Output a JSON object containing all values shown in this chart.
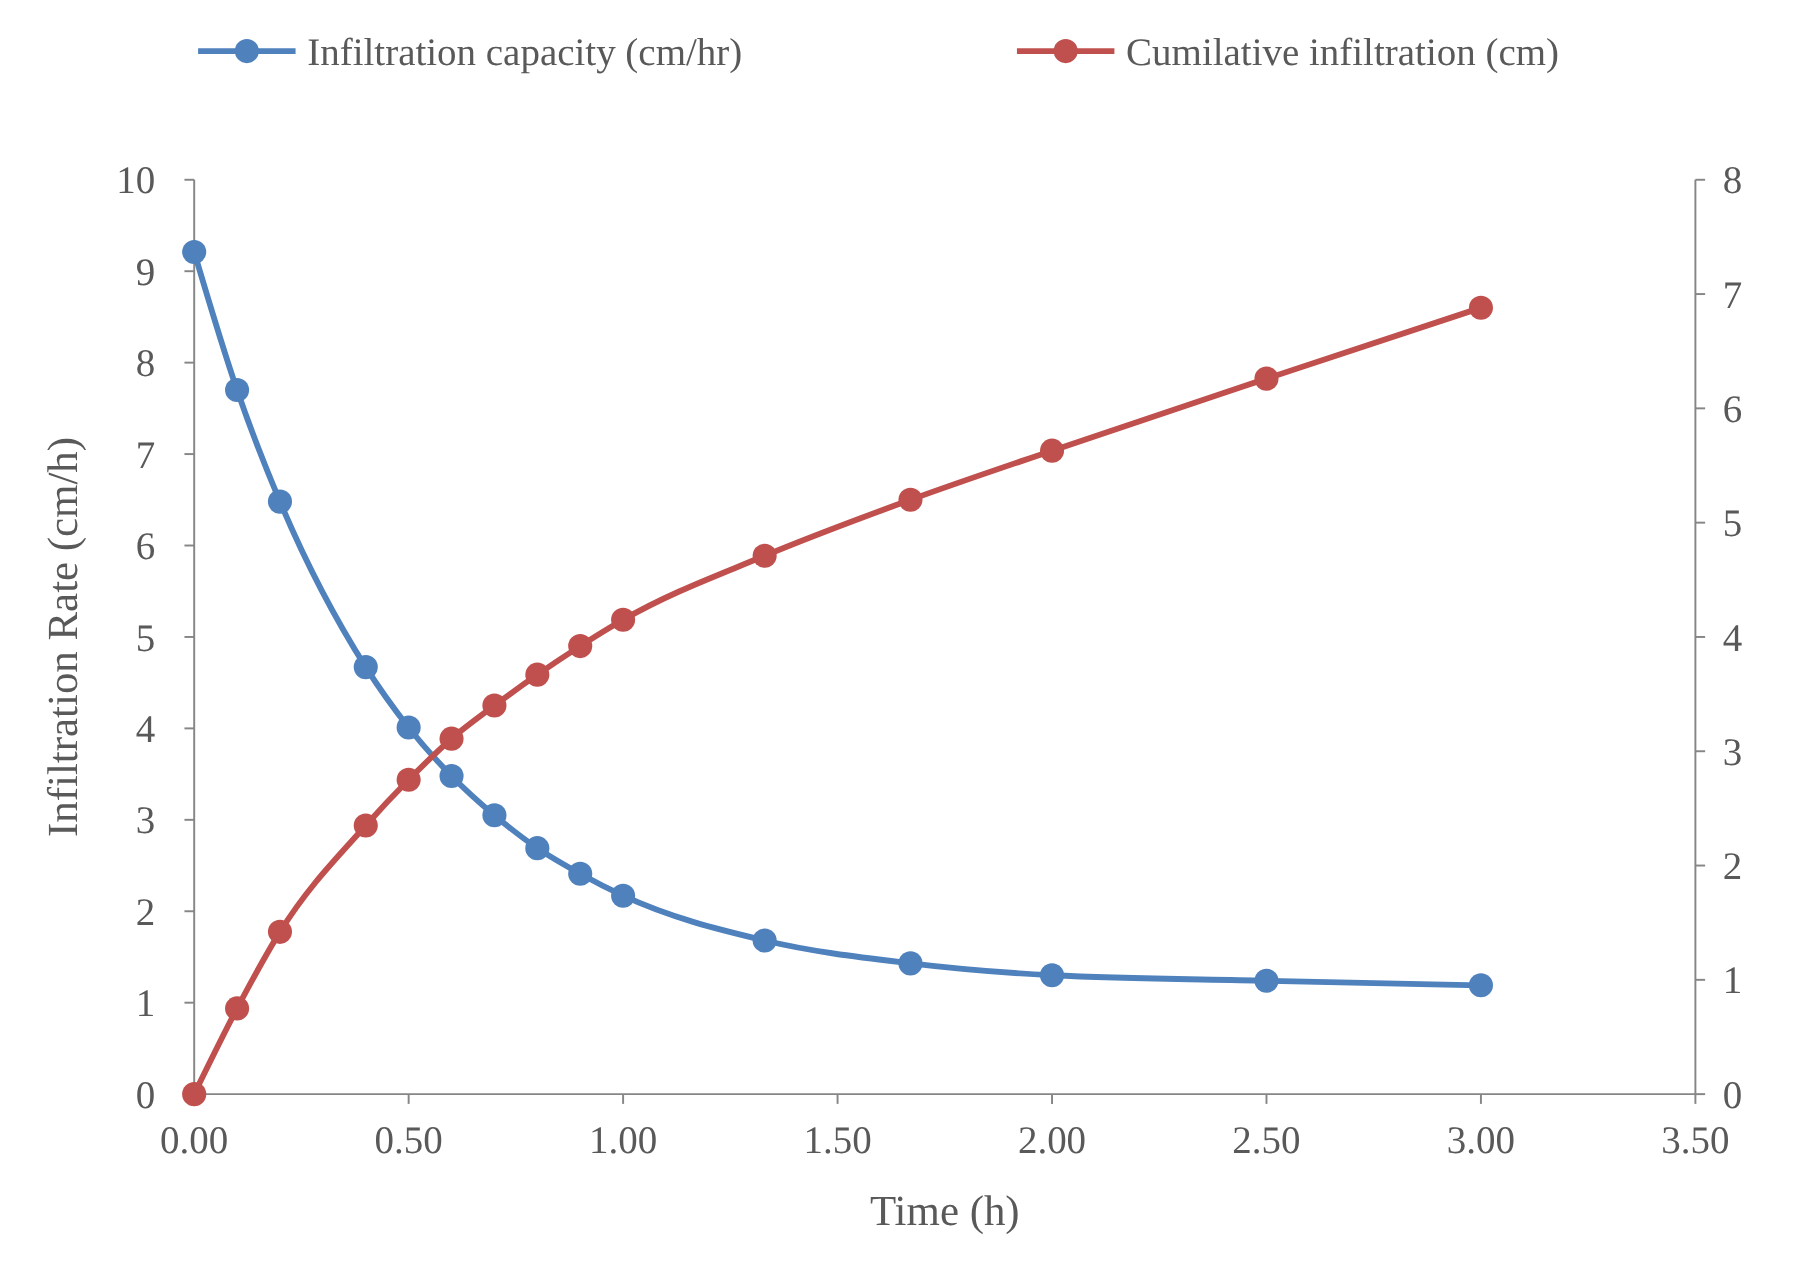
{
  "chart_data": {
    "type": "line",
    "xlabel": "Time (h)",
    "ylabel": "Infiltration Rate (cm/h)",
    "legend": "top",
    "marker": "circle",
    "grid": false,
    "xlim": [
      0,
      3.5
    ],
    "xticks": [
      {
        "value": 0,
        "label": "0.00"
      },
      {
        "value": 0.5,
        "label": "0.50"
      },
      {
        "value": 1,
        "label": "1.00"
      },
      {
        "value": 1.5,
        "label": "1.50"
      },
      {
        "value": 2,
        "label": "2.00"
      },
      {
        "value": 2.5,
        "label": "2.50"
      },
      {
        "value": 3,
        "label": "3.00"
      },
      {
        "value": 3.5,
        "label": "3.50"
      }
    ],
    "ylim": [
      0,
      10
    ],
    "yticks": [
      0,
      1,
      2,
      3,
      4,
      5,
      6,
      7,
      8,
      9,
      10
    ],
    "y2lim": [
      0,
      8
    ],
    "y2ticks": [
      0,
      1,
      2,
      3,
      4,
      5,
      6,
      7,
      8
    ],
    "x": [
      0,
      0.1,
      0.2,
      0.4,
      0.5,
      0.6,
      0.7,
      0.8,
      0.9,
      1.0,
      1.33,
      1.67,
      2.0,
      2.5,
      3.0
    ],
    "series": [
      {
        "name": "Infiltration capacity (cm/hr)",
        "color": "#4f81bd",
        "values": [
          9.21,
          7.7,
          6.48,
          4.67,
          4.01,
          3.48,
          3.05,
          2.69,
          2.41,
          2.17,
          1.68,
          1.43,
          1.3,
          1.24,
          1.19
        ]
      },
      {
        "name": "Cumilative infiltration (cm)",
        "color": "#c0504d",
        "axis": "y2",
        "values": [
          0,
          0.75,
          1.42,
          2.35,
          2.75,
          3.11,
          3.4,
          3.67,
          3.92,
          4.15,
          4.71,
          5.2,
          5.63,
          6.26,
          6.88
        ]
      }
    ]
  }
}
